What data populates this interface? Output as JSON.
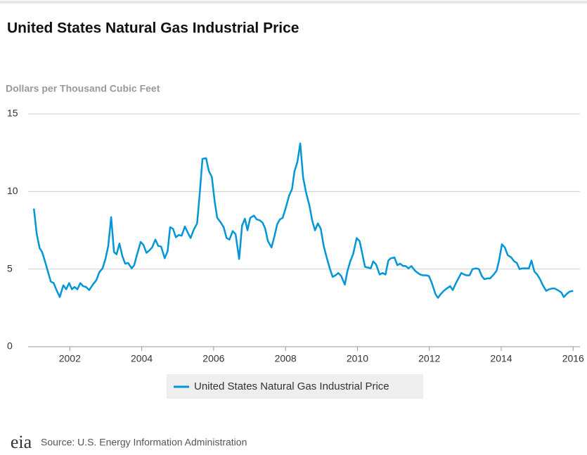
{
  "chart_data": {
    "type": "line",
    "title": "United States Natural Gas Industrial Price",
    "y_label": "Dollars per Thousand Cubic Feet",
    "x": [
      2001.0,
      2001.08,
      2001.16,
      2001.23,
      2001.31,
      2001.39,
      2001.47,
      2001.55,
      2001.63,
      2001.72,
      2001.82,
      2001.9,
      2001.98,
      2002.06,
      2002.13,
      2002.21,
      2002.29,
      2002.37,
      2002.45,
      2002.54,
      2002.64,
      2002.74,
      2002.82,
      2002.91,
      2002.99,
      2003.07,
      2003.15,
      2003.23,
      2003.3,
      2003.38,
      2003.46,
      2003.54,
      2003.62,
      2003.72,
      2003.79,
      2003.87,
      2003.97,
      2004.05,
      2004.13,
      2004.21,
      2004.29,
      2004.38,
      2004.46,
      2004.54,
      2004.64,
      2004.72,
      2004.79,
      2004.87,
      2004.95,
      2005.03,
      2005.11,
      2005.2,
      2005.28,
      2005.36,
      2005.44,
      2005.54,
      2005.61,
      2005.69,
      2005.79,
      2005.87,
      2005.95,
      2006.03,
      2006.1,
      2006.2,
      2006.28,
      2006.36,
      2006.44,
      2006.53,
      2006.61,
      2006.71,
      2006.79,
      2006.87,
      2006.94,
      2007.02,
      2007.12,
      2007.2,
      2007.28,
      2007.36,
      2007.43,
      2007.51,
      2007.61,
      2007.69,
      2007.77,
      2007.84,
      2007.92,
      2008.0,
      2008.1,
      2008.18,
      2008.25,
      2008.33,
      2008.41,
      2008.49,
      2008.57,
      2008.67,
      2008.74,
      2008.82,
      2008.9,
      2008.98,
      2009.06,
      2009.15,
      2009.23,
      2009.31,
      2009.39,
      2009.47,
      2009.55,
      2009.65,
      2009.72,
      2009.8,
      2009.88,
      2009.98,
      2010.06,
      2010.13,
      2010.21,
      2010.29,
      2010.37,
      2010.44,
      2010.52,
      2010.62,
      2010.7,
      2010.78,
      2010.86,
      2010.93,
      2011.03,
      2011.11,
      2011.19,
      2011.27,
      2011.34,
      2011.42,
      2011.5,
      2011.6,
      2011.68,
      2011.75,
      2011.83,
      2011.91,
      2011.99,
      2012.07,
      2012.17,
      2012.24,
      2012.32,
      2012.4,
      2012.48,
      2012.58,
      2012.65,
      2012.73,
      2012.81,
      2012.89,
      2012.97,
      2013.04,
      2013.12,
      2013.2,
      2013.3,
      2013.38,
      2013.46,
      2013.53,
      2013.61,
      2013.69,
      2013.79,
      2013.87,
      2013.94,
      2014.02,
      2014.1,
      2014.18,
      2014.28,
      2014.36,
      2014.43,
      2014.51,
      2014.59,
      2014.67,
      2014.77,
      2014.84,
      2014.92,
      2015.0,
      2015.08,
      2015.16,
      2015.25,
      2015.33,
      2015.41,
      2015.49,
      2015.57,
      2015.67,
      2015.74,
      2015.82,
      2015.9,
      2016.0
    ],
    "series": [
      {
        "name": "United States Natural Gas Industrial Price",
        "color": "#0096d7",
        "values": [
          8.9,
          7.25,
          6.35,
          6.1,
          5.5,
          4.85,
          4.2,
          4.1,
          3.65,
          3.2,
          3.95,
          3.7,
          4.1,
          3.7,
          3.85,
          3.7,
          4.1,
          3.9,
          3.85,
          3.65,
          4.0,
          4.3,
          4.8,
          5.05,
          5.65,
          6.5,
          8.35,
          6.1,
          5.95,
          6.65,
          5.85,
          5.35,
          5.4,
          5.05,
          5.25,
          5.95,
          6.75,
          6.55,
          6.05,
          6.2,
          6.4,
          6.9,
          6.5,
          6.45,
          5.7,
          6.15,
          7.7,
          7.6,
          7.05,
          7.2,
          7.15,
          7.75,
          7.35,
          7.0,
          7.5,
          7.95,
          9.75,
          12.1,
          12.15,
          11.3,
          10.95,
          9.35,
          8.3,
          8.0,
          7.7,
          7.0,
          6.9,
          7.45,
          7.25,
          5.65,
          7.8,
          8.25,
          7.5,
          8.3,
          8.45,
          8.2,
          8.15,
          8.0,
          7.65,
          6.8,
          6.4,
          7.1,
          7.9,
          8.2,
          8.3,
          8.9,
          9.75,
          10.15,
          11.3,
          11.9,
          13.1,
          10.9,
          9.95,
          9.05,
          8.15,
          7.5,
          7.95,
          7.6,
          6.5,
          5.7,
          5.05,
          4.5,
          4.6,
          4.75,
          4.55,
          4.0,
          4.85,
          5.5,
          5.95,
          7.0,
          6.8,
          6.05,
          5.15,
          5.1,
          5.05,
          5.5,
          5.3,
          4.65,
          4.75,
          4.65,
          5.55,
          5.7,
          5.75,
          5.25,
          5.35,
          5.2,
          5.2,
          5.05,
          5.2,
          4.9,
          4.75,
          4.65,
          4.6,
          4.6,
          4.55,
          4.1,
          3.4,
          3.15,
          3.4,
          3.6,
          3.75,
          3.9,
          3.65,
          4.05,
          4.4,
          4.75,
          4.65,
          4.6,
          4.6,
          5.0,
          5.05,
          5.0,
          4.55,
          4.35,
          4.4,
          4.4,
          4.65,
          4.9,
          5.55,
          6.6,
          6.4,
          5.9,
          5.75,
          5.5,
          5.4,
          5.0,
          5.05,
          5.05,
          5.05,
          5.55,
          4.85,
          4.65,
          4.35,
          3.95,
          3.6,
          3.7,
          3.75,
          3.75,
          3.65,
          3.5,
          3.2,
          3.4,
          3.55,
          3.6
        ]
      }
    ],
    "xlim": [
      2000.84,
      2016.19
    ],
    "xticks": [
      2002,
      2004,
      2006,
      2008,
      2010,
      2012,
      2014,
      2016
    ],
    "ylim": [
      0,
      15
    ],
    "yticks": [
      0,
      5,
      10,
      15
    ],
    "grid": true,
    "legend": "bottom"
  },
  "source": {
    "logo": "eia",
    "text": "Source: U.S. Energy Information Administration"
  }
}
